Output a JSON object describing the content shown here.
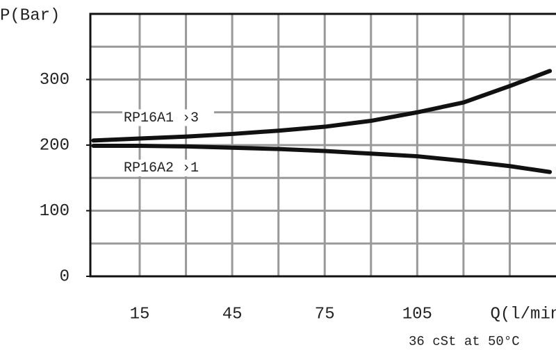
{
  "chart_data": {
    "type": "line",
    "y_label": "P(Bar)",
    "x_label": "Q(l/min)",
    "note": "36 cSt at 50°C",
    "x": [
      0,
      15,
      30,
      45,
      60,
      75,
      90,
      105,
      120,
      135,
      148
    ],
    "series": [
      {
        "name": "RP16A1 ›3",
        "color": "#111111",
        "values": [
          207,
          210,
          213,
          217,
          222,
          228,
          237,
          250,
          265,
          290,
          313
        ]
      },
      {
        "name": "RP16A2 ›1",
        "color": "#111111",
        "values": [
          199,
          199,
          198,
          196,
          194,
          191,
          187,
          183,
          176,
          168,
          159
        ]
      }
    ],
    "xlim": [
      -1,
      150
    ],
    "ylim": [
      0,
      400
    ],
    "xticks": [
      15,
      45,
      75,
      105
    ],
    "yticks": [
      0,
      100,
      200,
      300
    ],
    "xgrid": [
      15,
      30,
      45,
      60,
      75,
      90,
      105,
      120,
      135
    ],
    "ygrid": [
      50,
      100,
      150,
      200,
      250,
      300,
      350
    ],
    "grid": true
  }
}
